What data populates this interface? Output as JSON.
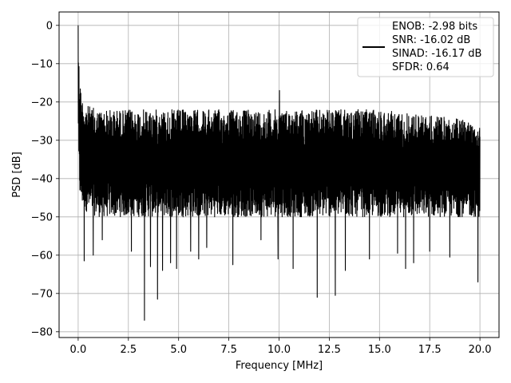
{
  "chart_data": {
    "type": "line",
    "xlabel": "Frequency [MHz]",
    "ylabel": "PSD [dB]",
    "xlim": [
      -0.95,
      20.95
    ],
    "ylim": [
      -81.5,
      3.5
    ],
    "grid": true,
    "line_color": "#000000",
    "legend_position": "top-right",
    "legend": {
      "lines": [
        "ENOB: -2.98 bits",
        "SNR: -16.02 dB",
        "SINAD: -16.17 dB",
        "SFDR: 0.64"
      ]
    },
    "x_ticks": [
      0,
      2.5,
      5,
      7.5,
      10,
      12.5,
      15,
      17.5,
      20
    ],
    "x_tick_labels": [
      "0.0",
      "2.5",
      "5.0",
      "7.5",
      "10.0",
      "12.5",
      "15.0",
      "17.5",
      "20.0"
    ],
    "y_ticks": [
      0,
      -10,
      -20,
      -30,
      -40,
      -50,
      -60,
      -70,
      -80
    ],
    "y_tick_labels": [
      "0",
      "−10",
      "−20",
      "−30",
      "−40",
      "−50",
      "−60",
      "−70",
      "−80"
    ],
    "series": [
      {
        "x_range": [
          0,
          20
        ],
        "envelope": {
          "x": [
            0,
            0.03,
            0.08,
            0.15,
            0.3,
            0.5,
            1.0,
            2.0,
            5.0,
            10.0,
            15.0,
            20.0
          ],
          "upper": [
            0,
            -8,
            -12,
            -18,
            -20,
            -21,
            -22,
            -22,
            -22,
            -22,
            -22,
            -25
          ],
          "lower": [
            -25,
            -40,
            -45,
            -47,
            -48,
            -49,
            -50,
            -50,
            -50,
            -50,
            -50,
            -50
          ]
        },
        "spikes": [
          {
            "x": 0.3,
            "y": -61.5
          },
          {
            "x": 0.75,
            "y": -60.0
          },
          {
            "x": 1.2,
            "y": -56.0
          },
          {
            "x": 2.65,
            "y": -59.0
          },
          {
            "x": 3.3,
            "y": -77.0
          },
          {
            "x": 3.6,
            "y": -63.0
          },
          {
            "x": 3.95,
            "y": -71.5
          },
          {
            "x": 4.2,
            "y": -64.0
          },
          {
            "x": 4.6,
            "y": -62.0
          },
          {
            "x": 4.9,
            "y": -63.5
          },
          {
            "x": 5.6,
            "y": -59.0
          },
          {
            "x": 6.0,
            "y": -61.0
          },
          {
            "x": 6.4,
            "y": -58.0
          },
          {
            "x": 7.7,
            "y": -62.5
          },
          {
            "x": 9.1,
            "y": -56.0
          },
          {
            "x": 9.95,
            "y": -61.0
          },
          {
            "x": 10.7,
            "y": -63.5
          },
          {
            "x": 11.9,
            "y": -71.0
          },
          {
            "x": 12.8,
            "y": -70.5
          },
          {
            "x": 13.3,
            "y": -64.0
          },
          {
            "x": 14.5,
            "y": -61.0
          },
          {
            "x": 15.9,
            "y": -59.5
          },
          {
            "x": 16.3,
            "y": -63.5
          },
          {
            "x": 16.7,
            "y": -62.0
          },
          {
            "x": 17.5,
            "y": -59.0
          },
          {
            "x": 18.5,
            "y": -60.5
          },
          {
            "x": 19.9,
            "y": -67.0
          }
        ],
        "peaks": [
          {
            "x": 10.02,
            "y": -17.0
          }
        ]
      }
    ]
  }
}
